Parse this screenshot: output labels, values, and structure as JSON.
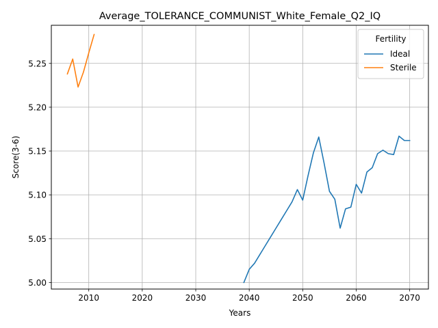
{
  "chart_data": {
    "type": "line",
    "title": "Average_TOLERANCE_COMMUNIST_White_Female_Q2_IQ",
    "xlabel": "Years",
    "ylabel": "Score(3-6)",
    "xlim": [
      2003,
      2073.5
    ],
    "ylim": [
      4.9925,
      5.2935
    ],
    "xticks": [
      2010,
      2020,
      2030,
      2040,
      2050,
      2060,
      2070
    ],
    "xtick_labels": [
      "2010",
      "2020",
      "2030",
      "2040",
      "2050",
      "2060",
      "2070"
    ],
    "yticks": [
      5.0,
      5.05,
      5.1,
      5.15,
      5.2,
      5.25
    ],
    "ytick_labels": [
      "5.00",
      "5.05",
      "5.10",
      "5.15",
      "5.20",
      "5.25"
    ],
    "grid": true,
    "legend": {
      "title": "Fertility",
      "placement": "top-right"
    },
    "series": [
      {
        "name": "Ideal",
        "color": "#1f77b4",
        "x": [
          2039,
          2040,
          2041,
          2042,
          2043,
          2044,
          2045,
          2046,
          2047,
          2048,
          2049,
          2050,
          2051,
          2052,
          2053,
          2054,
          2055,
          2056,
          2057,
          2058,
          2059,
          2060,
          2061,
          2062,
          2063,
          2064,
          2065,
          2066,
          2067,
          2068,
          2069,
          2070
        ],
        "y": [
          5.0,
          5.015,
          5.022,
          5.032,
          5.042,
          5.052,
          5.062,
          5.072,
          5.082,
          5.092,
          5.106,
          5.094,
          5.122,
          5.148,
          5.166,
          5.136,
          5.104,
          5.095,
          5.062,
          5.084,
          5.086,
          5.112,
          5.102,
          5.126,
          5.131,
          5.147,
          5.151,
          5.147,
          5.146,
          5.167,
          5.162,
          5.162
        ]
      },
      {
        "name": "Sterile",
        "color": "#ff7f0e",
        "x": [
          2006,
          2007,
          2008,
          2009,
          2010,
          2011
        ],
        "y": [
          5.238,
          5.255,
          5.223,
          5.24,
          5.262,
          5.283
        ]
      }
    ]
  }
}
